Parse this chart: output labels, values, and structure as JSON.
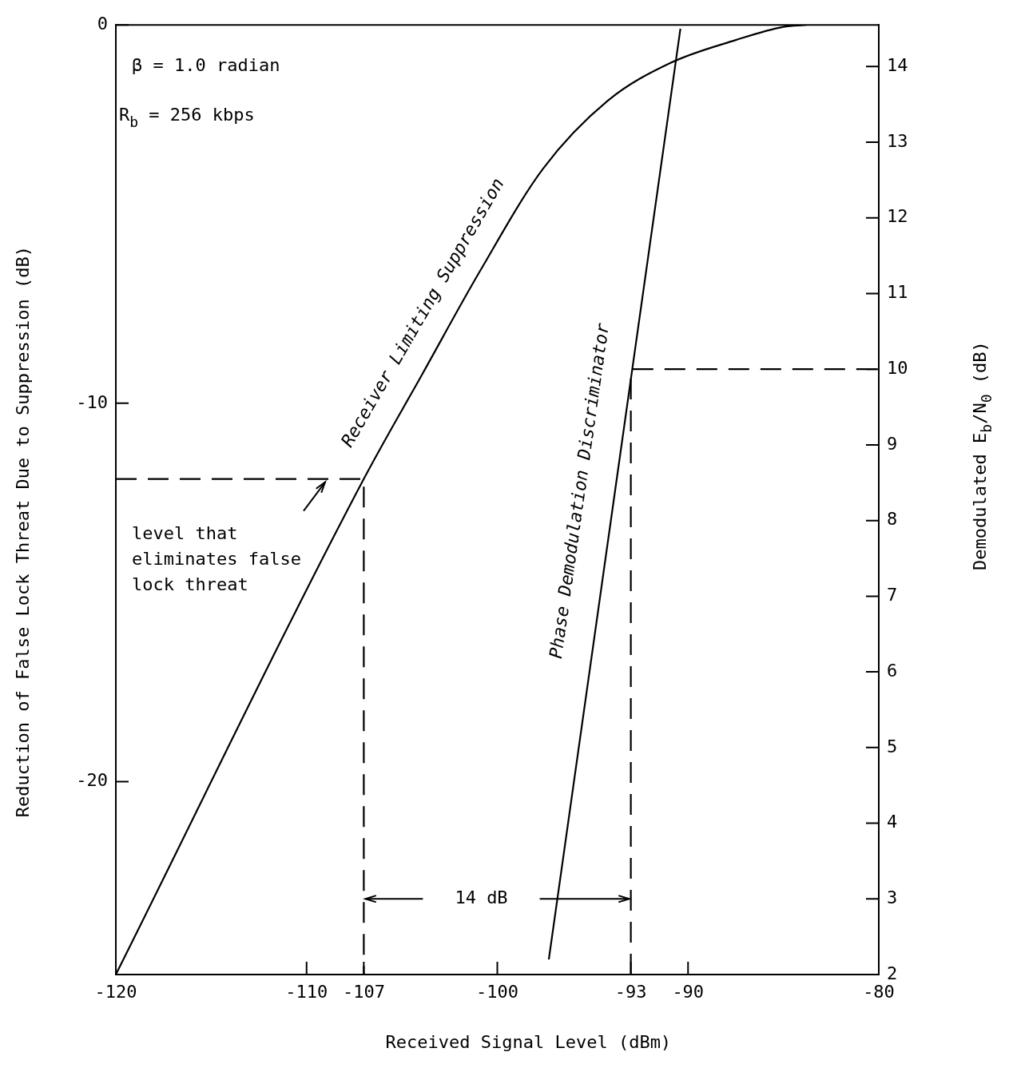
{
  "chart_data": {
    "type": "line",
    "xlabel": "Received Signal Level (dBm)",
    "ylabel": "Reduction of False Lock Threat Due to Suppression (dB)",
    "y2label": "Demodulated E$_{b}$/N$_{0}$ (dB)",
    "xlim": [
      -120,
      -80
    ],
    "xticks": [
      -120,
      -110,
      -107,
      -100,
      -93,
      -90,
      -80
    ],
    "ylim": [
      -25.1,
      0
    ],
    "yticks": [
      0,
      -10,
      -20
    ],
    "y2lim": [
      2,
      14.55
    ],
    "y2ticks": [
      2,
      3,
      4,
      5,
      6,
      7,
      8,
      9,
      10,
      11,
      12,
      13,
      14
    ],
    "grid": false,
    "legend": false,
    "marker": "none",
    "annotations": [
      "β = 1.0 radian",
      "R$_{b}$ = 256 kbps",
      "level that eliminates false lock threat",
      "14 dB"
    ],
    "series": [
      {
        "name": "Receiver Limiting Suppression",
        "color": "#000000",
        "axis": "y",
        "line_style": "solid",
        "x": [
          -120,
          -107,
          -103.9,
          -100.9,
          -97.6,
          -94.2,
          -90.9,
          -87.5,
          -85,
          -83.8
        ],
        "values": [
          -25.1,
          -12,
          -9.2,
          -6.5,
          -3.8,
          -2.0,
          -1.0,
          -0.4,
          -0.05,
          0
        ]
      },
      {
        "name": "Phase Demodulation Discriminator",
        "color": "#000000",
        "axis": "y2",
        "line_style": "solid",
        "x": [
          -97.3,
          -90.4
        ],
        "values": [
          2.2,
          14.5
        ]
      },
      {
        "color": "#000000",
        "axis": "y",
        "line_style": "dashed",
        "x": [
          -120,
          -107,
          -107
        ],
        "values": [
          -12,
          -12,
          -25.1
        ]
      },
      {
        "color": "#000000",
        "axis": "y2",
        "line_style": "dashed",
        "x": [
          -93,
          -93,
          -80
        ],
        "values": [
          2,
          10,
          10
        ]
      }
    ]
  }
}
